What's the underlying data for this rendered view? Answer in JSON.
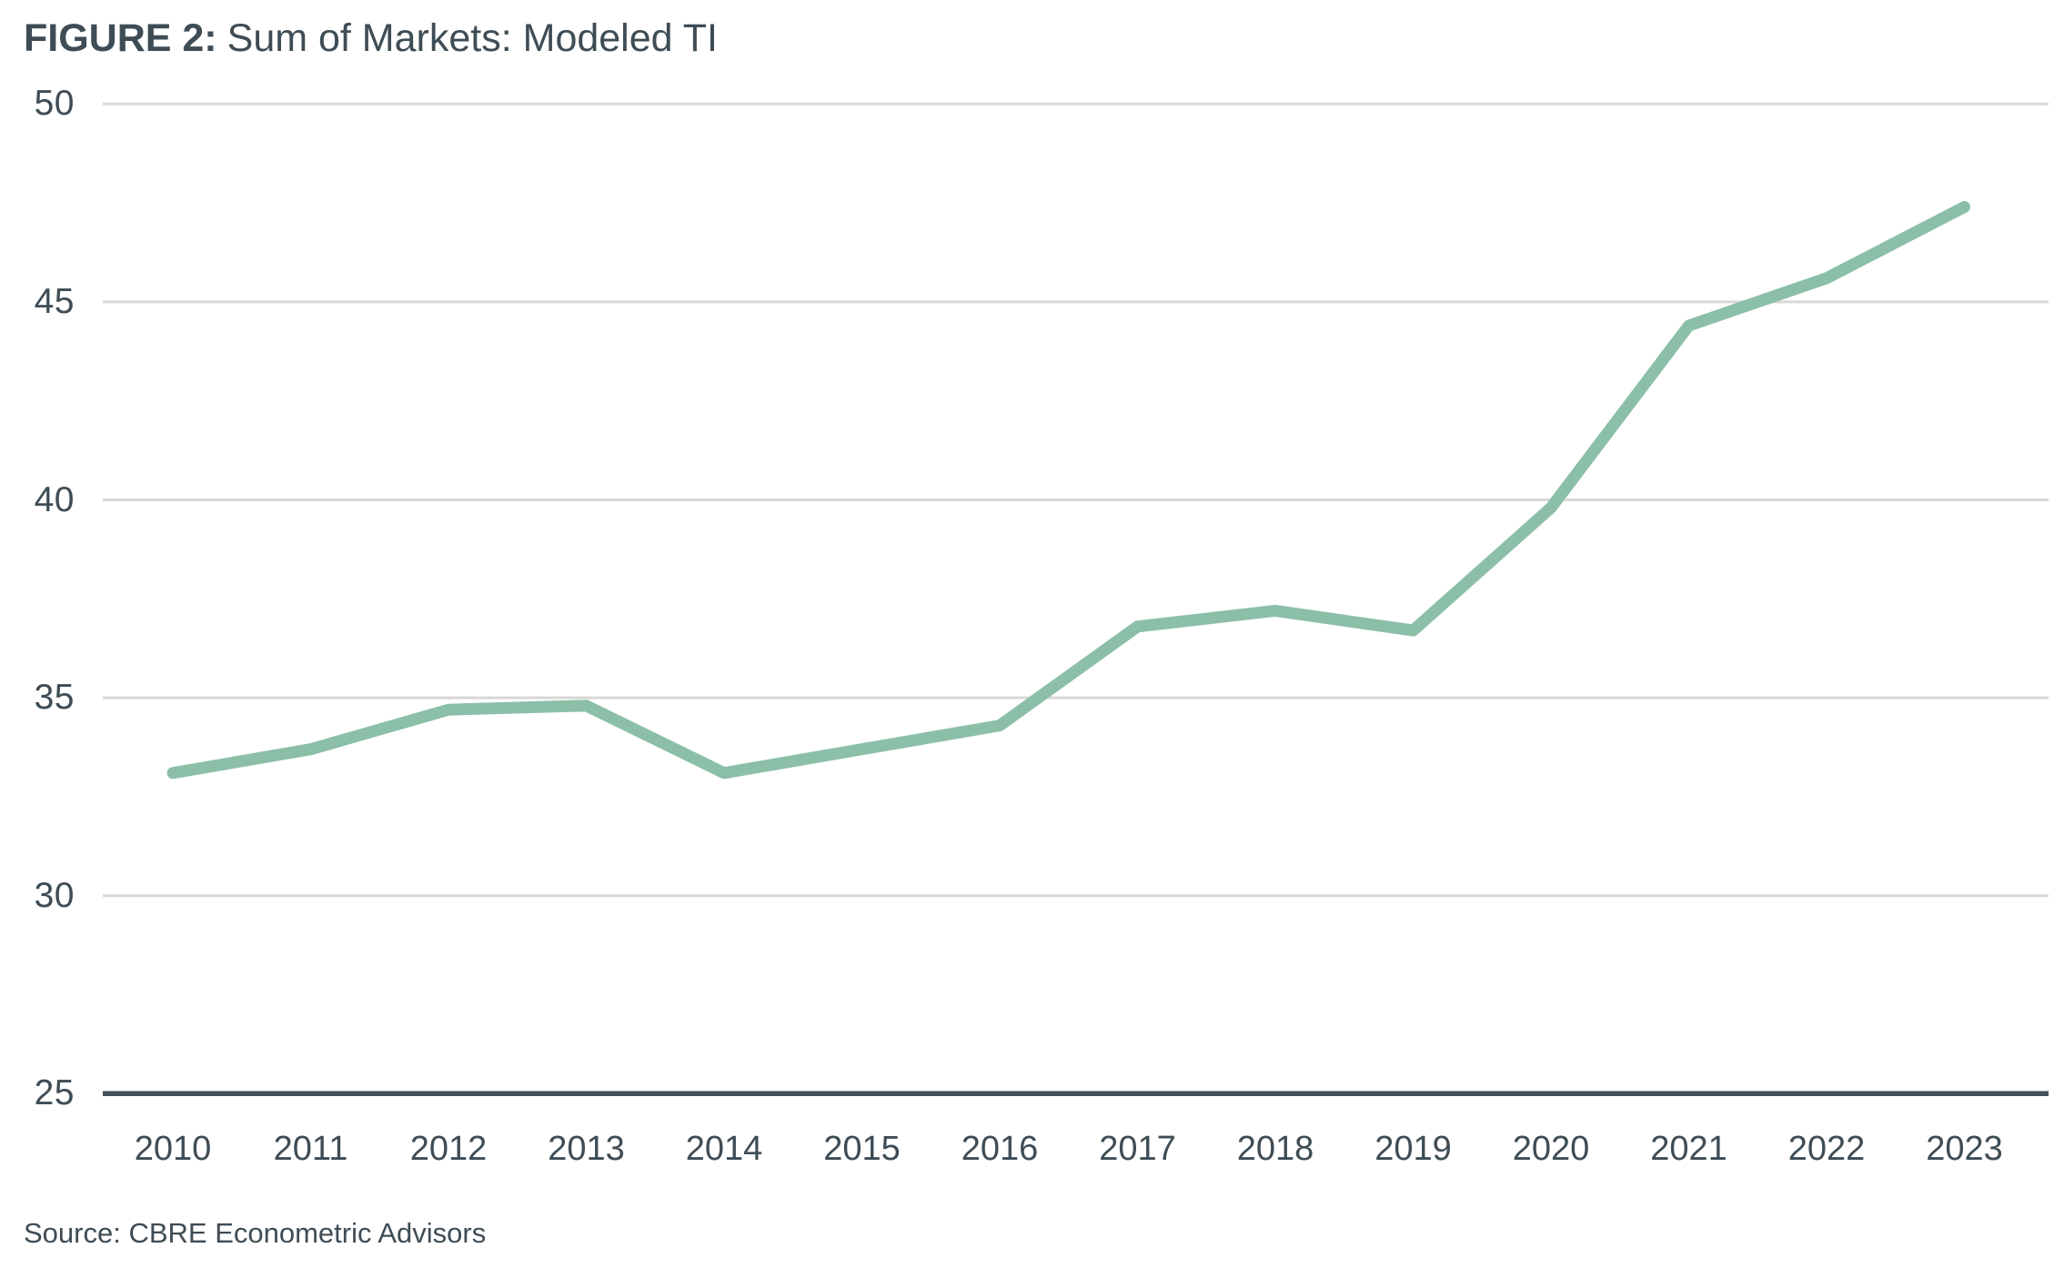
{
  "figure": {
    "label": "FIGURE 2:",
    "title": "Sum of Markets: Modeled TI",
    "source": "Source: CBRE Econometric Advisors"
  },
  "colors": {
    "line": "#8bbfa8",
    "axis_baseline": "#43525a",
    "gridline": "#d8d8d8",
    "text": "#3e4c55"
  },
  "chart_data": {
    "type": "line",
    "title": "FIGURE 2: Sum of Markets: Modeled TI",
    "x": [
      2010,
      2011,
      2012,
      2013,
      2014,
      2015,
      2016,
      2017,
      2018,
      2019,
      2020,
      2021,
      2022,
      2023
    ],
    "series": [
      {
        "name": "Modeled TI",
        "values": [
          33.1,
          33.7,
          34.7,
          34.8,
          33.1,
          33.7,
          34.3,
          36.8,
          37.2,
          36.7,
          39.8,
          44.4,
          45.6,
          47.4
        ]
      }
    ],
    "xlabel": "",
    "ylabel": "",
    "ylim": [
      25,
      50
    ],
    "yticks": [
      25,
      30,
      35,
      40,
      45,
      50
    ],
    "grid": true,
    "legend": false,
    "source": "Source: CBRE Econometric Advisors"
  }
}
